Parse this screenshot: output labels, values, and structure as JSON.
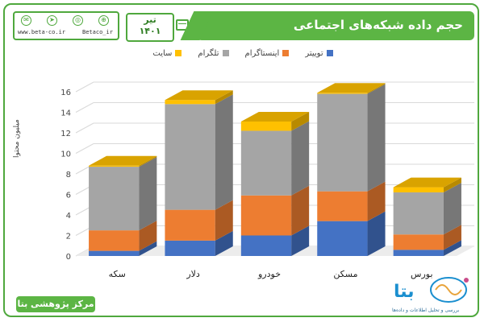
{
  "header": {
    "title": "حجم داده شبکه‌های اجتماعی",
    "date_month": "تیر",
    "date_year": "۱۴۰۱",
    "website": "www.beta-co.ir",
    "handle": "Betaco_ir"
  },
  "footer": {
    "label": "مرکز پژوهشی بتا",
    "logo_word": "بتا",
    "logo_sub": "بررسی و تحلیل اطلاعات و داده‌ها"
  },
  "colors": {
    "accent": "#5cb544",
    "twitter": "#4472c4",
    "instagram": "#ed7d31",
    "telegram": "#a5a5a5",
    "site": "#ffc000"
  },
  "icons": [
    "mail-icon",
    "telegram-icon",
    "instagram-icon",
    "web-icon",
    "calendar-icon"
  ],
  "chart_data": {
    "type": "bar",
    "stacked": true,
    "categories": [
      "سکه",
      "دلار",
      "خودرو",
      "مسکن",
      "بورس"
    ],
    "series": [
      {
        "name": "توییتر",
        "values": [
          0.5,
          1.5,
          2.0,
          3.4,
          0.6
        ]
      },
      {
        "name": "اینستاگرام",
        "values": [
          2.0,
          3.0,
          3.9,
          2.9,
          1.5
        ]
      },
      {
        "name": "تلگرام",
        "values": [
          6.2,
          10.3,
          6.3,
          9.5,
          4.1
        ]
      },
      {
        "name": "سایت",
        "values": [
          0.1,
          0.4,
          0.9,
          0.1,
          0.5
        ]
      }
    ],
    "ylabel": "میلیون محتوا",
    "yticks": [
      0,
      2,
      4,
      6,
      8,
      10,
      12,
      14,
      16
    ],
    "ylim": [
      0,
      16
    ],
    "legend": "top",
    "grid": true
  }
}
